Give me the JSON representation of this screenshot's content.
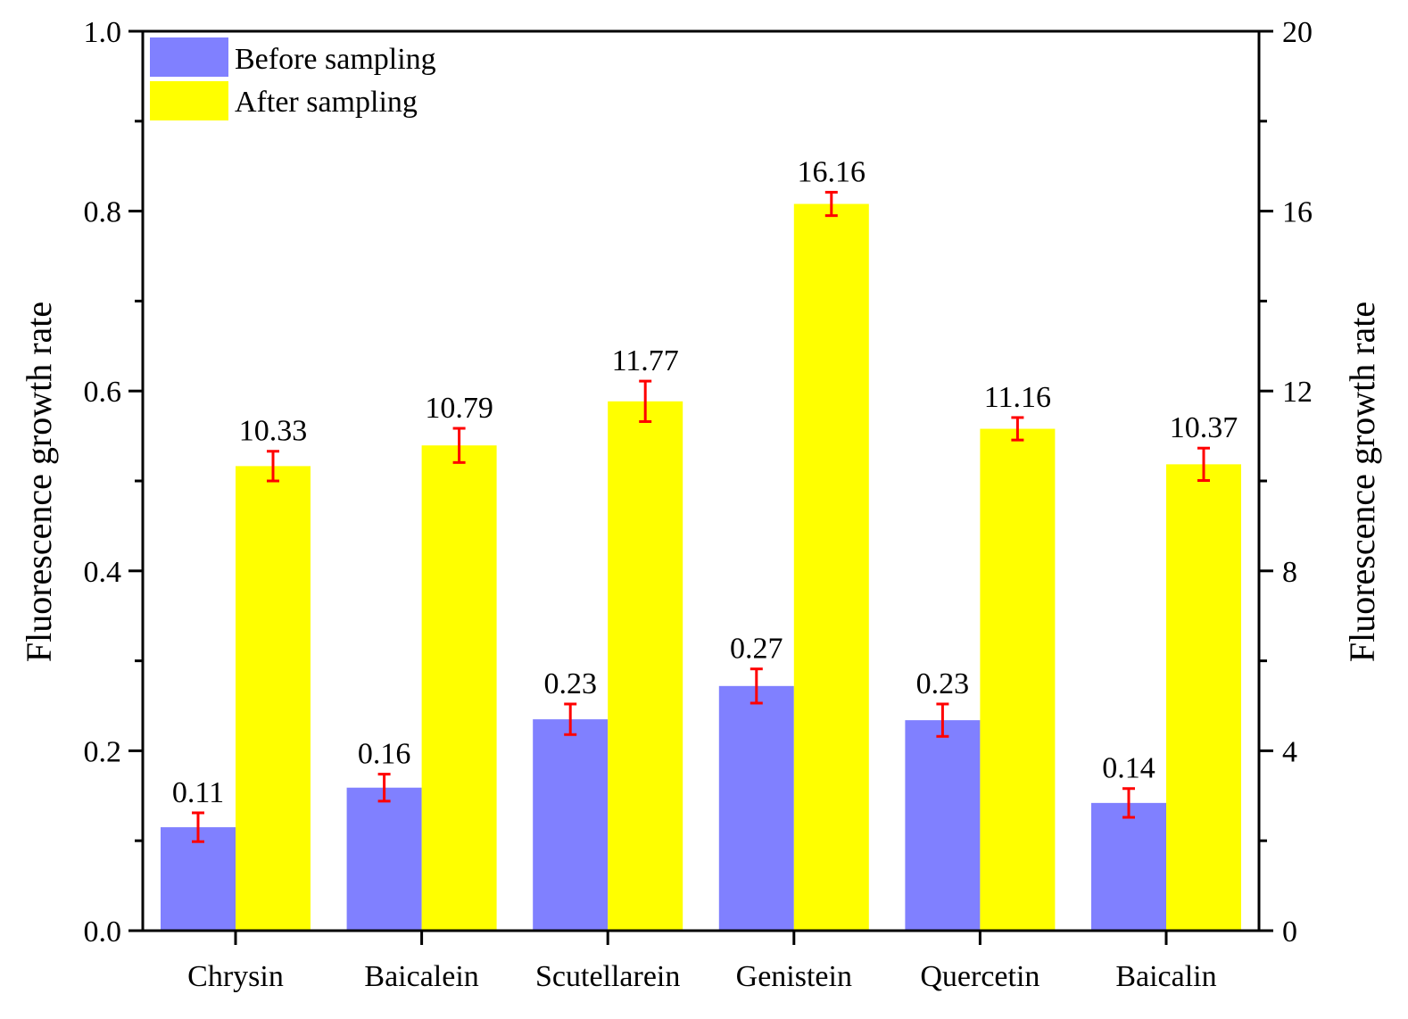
{
  "chart_data": {
    "type": "bar",
    "title": "",
    "xlabel": "",
    "ylabel": "Fluorescence growth rate",
    "y2label": "Fluorescence growth rate",
    "categories": [
      "Chrysin",
      "Baicalein",
      "Scutellarein",
      "Genistein",
      "Quercetin",
      "Baicalin"
    ],
    "ylim": [
      0,
      1.0
    ],
    "y2lim": [
      0,
      20
    ],
    "yticks": [
      "0.0",
      "0.2",
      "0.4",
      "0.6",
      "0.8",
      "1.0"
    ],
    "y2ticks": [
      "0",
      "4",
      "8",
      "12",
      "16",
      "20"
    ],
    "series": [
      {
        "name": "Before sampling",
        "axis": "left",
        "color": "#8080ff",
        "values": [
          0.115,
          0.159,
          0.235,
          0.272,
          0.234,
          0.142
        ],
        "errors": [
          0.016,
          0.015,
          0.017,
          0.019,
          0.018,
          0.016
        ],
        "labels": [
          "0.11",
          "0.16",
          "0.23",
          "0.27",
          "0.23",
          "0.14"
        ]
      },
      {
        "name": "After sampling",
        "axis": "right",
        "color": "#ffff00",
        "values": [
          10.33,
          10.79,
          11.77,
          16.16,
          11.16,
          10.37
        ],
        "errors": [
          0.33,
          0.38,
          0.45,
          0.26,
          0.25,
          0.36
        ],
        "labels": [
          "10.33",
          "10.79",
          "11.77",
          "16.16",
          "11.16",
          "10.37"
        ]
      }
    ],
    "error_color": "#ff0000",
    "legend": "top-left",
    "grid": false
  }
}
